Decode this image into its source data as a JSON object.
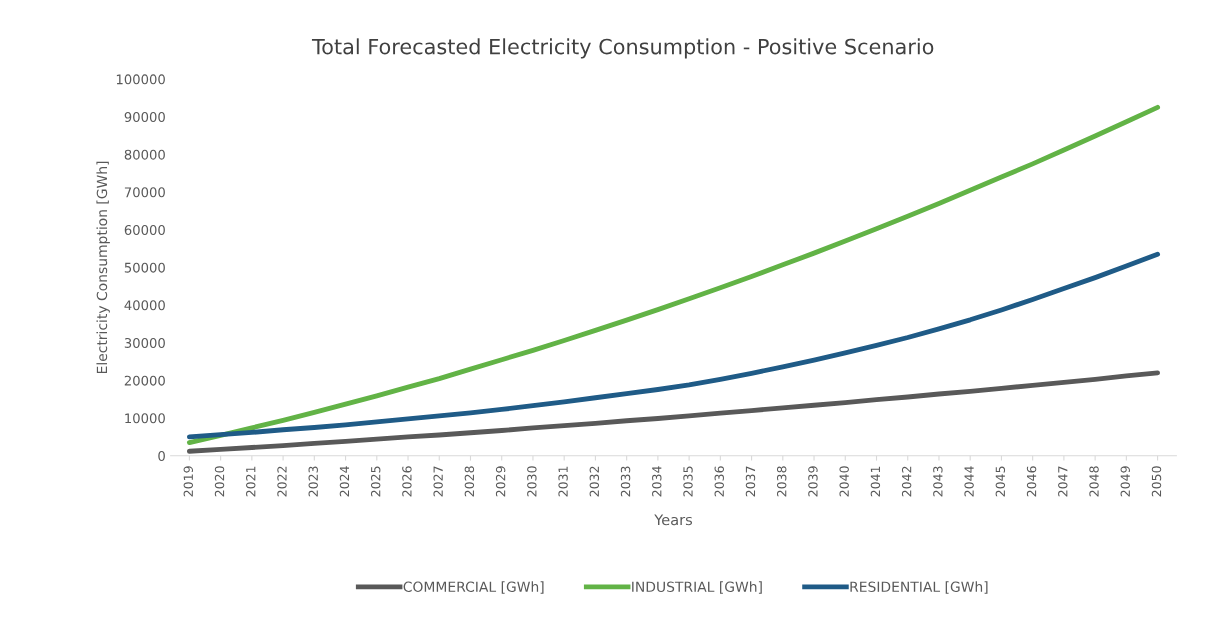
{
  "chart_data": {
    "type": "line",
    "title": "Total Forecasted Electricity Consumption - Positive Scenario",
    "xlabel": "Years",
    "ylabel": "Electricity Consumption [GWh]",
    "categories": [
      "2019",
      "2020",
      "2021",
      "2022",
      "2023",
      "2024",
      "2025",
      "2026",
      "2027",
      "2028",
      "2029",
      "2030",
      "2031",
      "2032",
      "2033",
      "2034",
      "2035",
      "2036",
      "2037",
      "2038",
      "2039",
      "2040",
      "2041",
      "2042",
      "2043",
      "2044",
      "2045",
      "2046",
      "2047",
      "2048",
      "2049",
      "2050"
    ],
    "series": [
      {
        "name": "COMMERCIAL [GWh]",
        "color": "#595959",
        "values": [
          1200,
          1700,
          2200,
          2700,
          3300,
          3800,
          4400,
          5000,
          5500,
          6100,
          6700,
          7400,
          8000,
          8600,
          9300,
          9900,
          10600,
          11300,
          12000,
          12700,
          13400,
          14100,
          14900,
          15600,
          16400,
          17100,
          17900,
          18700,
          19500,
          20300,
          21200,
          22000
        ]
      },
      {
        "name": "INDUSTRIAL [GWh]",
        "color": "#62b346",
        "values": [
          3500,
          5400,
          7400,
          9400,
          11500,
          13700,
          15900,
          18200,
          20500,
          23000,
          25500,
          28000,
          30600,
          33300,
          36000,
          38800,
          41700,
          44600,
          47600,
          50700,
          53800,
          57000,
          60300,
          63600,
          67000,
          70500,
          74000,
          77500,
          81200,
          84900,
          88700,
          92500
        ]
      },
      {
        "name": "RESIDENTIAL [GWh]",
        "color": "#1f5b87",
        "values": [
          5000,
          5600,
          6200,
          6900,
          7500,
          8200,
          9000,
          9800,
          10600,
          11400,
          12300,
          13300,
          14300,
          15400,
          16500,
          17600,
          18800,
          20300,
          21900,
          23600,
          25400,
          27300,
          29300,
          31400,
          33700,
          36100,
          38700,
          41500,
          44400,
          47300,
          50400,
          53500
        ]
      }
    ],
    "ylim": [
      0,
      100000
    ],
    "yticks": [
      0,
      10000,
      20000,
      30000,
      40000,
      50000,
      60000,
      70000,
      80000,
      90000,
      100000
    ],
    "grid": false,
    "legend": "bottom",
    "marker": "none",
    "line_style": "solid"
  }
}
